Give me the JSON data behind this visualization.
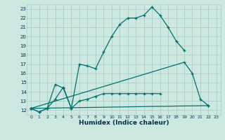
{
  "xlabel": "Humidex (Indice chaleur)",
  "background_color": "#cce8e0",
  "grid_color": "#aacec8",
  "line_color": "#007070",
  "xlim": [
    -0.5,
    23.5
  ],
  "ylim": [
    11.5,
    23.5
  ],
  "xticks": [
    0,
    1,
    2,
    3,
    4,
    5,
    6,
    7,
    8,
    9,
    10,
    11,
    12,
    13,
    14,
    15,
    16,
    17,
    18,
    19,
    20,
    21,
    22,
    23
  ],
  "yticks": [
    12,
    13,
    14,
    15,
    16,
    17,
    18,
    19,
    20,
    21,
    22,
    23
  ],
  "line1_x": [
    0,
    1,
    2,
    3,
    4,
    5,
    6,
    7,
    8,
    9,
    10,
    11,
    12,
    13,
    14,
    15,
    16,
    17,
    18,
    19
  ],
  "line1_y": [
    12.2,
    11.8,
    12.2,
    14.8,
    14.4,
    12.2,
    17.0,
    16.8,
    16.5,
    18.3,
    20.0,
    21.3,
    22.0,
    22.0,
    22.3,
    23.2,
    22.3,
    21.0,
    19.5,
    18.5
  ],
  "line2_x": [
    0,
    1,
    2,
    3,
    4,
    5,
    6,
    7,
    8,
    9,
    10,
    11,
    12,
    13,
    14,
    15,
    16
  ],
  "line2_y": [
    12.2,
    11.8,
    12.2,
    13.2,
    14.5,
    12.2,
    13.0,
    13.2,
    13.5,
    13.8,
    13.8,
    13.8,
    13.8,
    13.8,
    13.8,
    13.8,
    13.8
  ],
  "line3_x": [
    0,
    19,
    20,
    21,
    22
  ],
  "line3_y": [
    12.2,
    17.2,
    16.0,
    13.2,
    12.5
  ],
  "line4_x": [
    0,
    22
  ],
  "line4_y": [
    12.2,
    12.5
  ]
}
